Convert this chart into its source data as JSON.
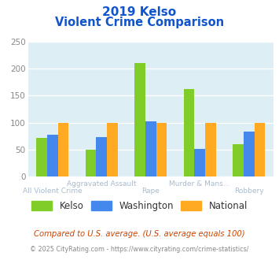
{
  "title_line1": "2019 Kelso",
  "title_line2": "Violent Crime Comparison",
  "categories_top": [
    "",
    "Aggravated Assault",
    "",
    "Murder & Mans...",
    ""
  ],
  "categories_bot": [
    "All Violent Crime",
    "",
    "Rape",
    "",
    "Robbery"
  ],
  "series": {
    "Kelso": [
      72,
      50,
      210,
      163,
      60
    ],
    "Washington": [
      78,
      73,
      103,
      52,
      83
    ],
    "National": [
      100,
      100,
      100,
      100,
      100
    ]
  },
  "colors": {
    "Kelso": "#80cc28",
    "Washington": "#4488ee",
    "National": "#ffaa22"
  },
  "ylim": [
    0,
    250
  ],
  "yticks": [
    0,
    50,
    100,
    150,
    200,
    250
  ],
  "bg_color": "#ddeef5",
  "grid_color": "#ffffff",
  "title_color": "#1155cc",
  "footnote": "Compared to U.S. average. (U.S. average equals 100)",
  "footnote2": "© 2025 CityRating.com - https://www.cityrating.com/crime-statistics/",
  "footnote_color": "#cc4400",
  "footnote2_color": "#888888",
  "tick_color": "#aabbcc",
  "ytick_color": "#888888"
}
